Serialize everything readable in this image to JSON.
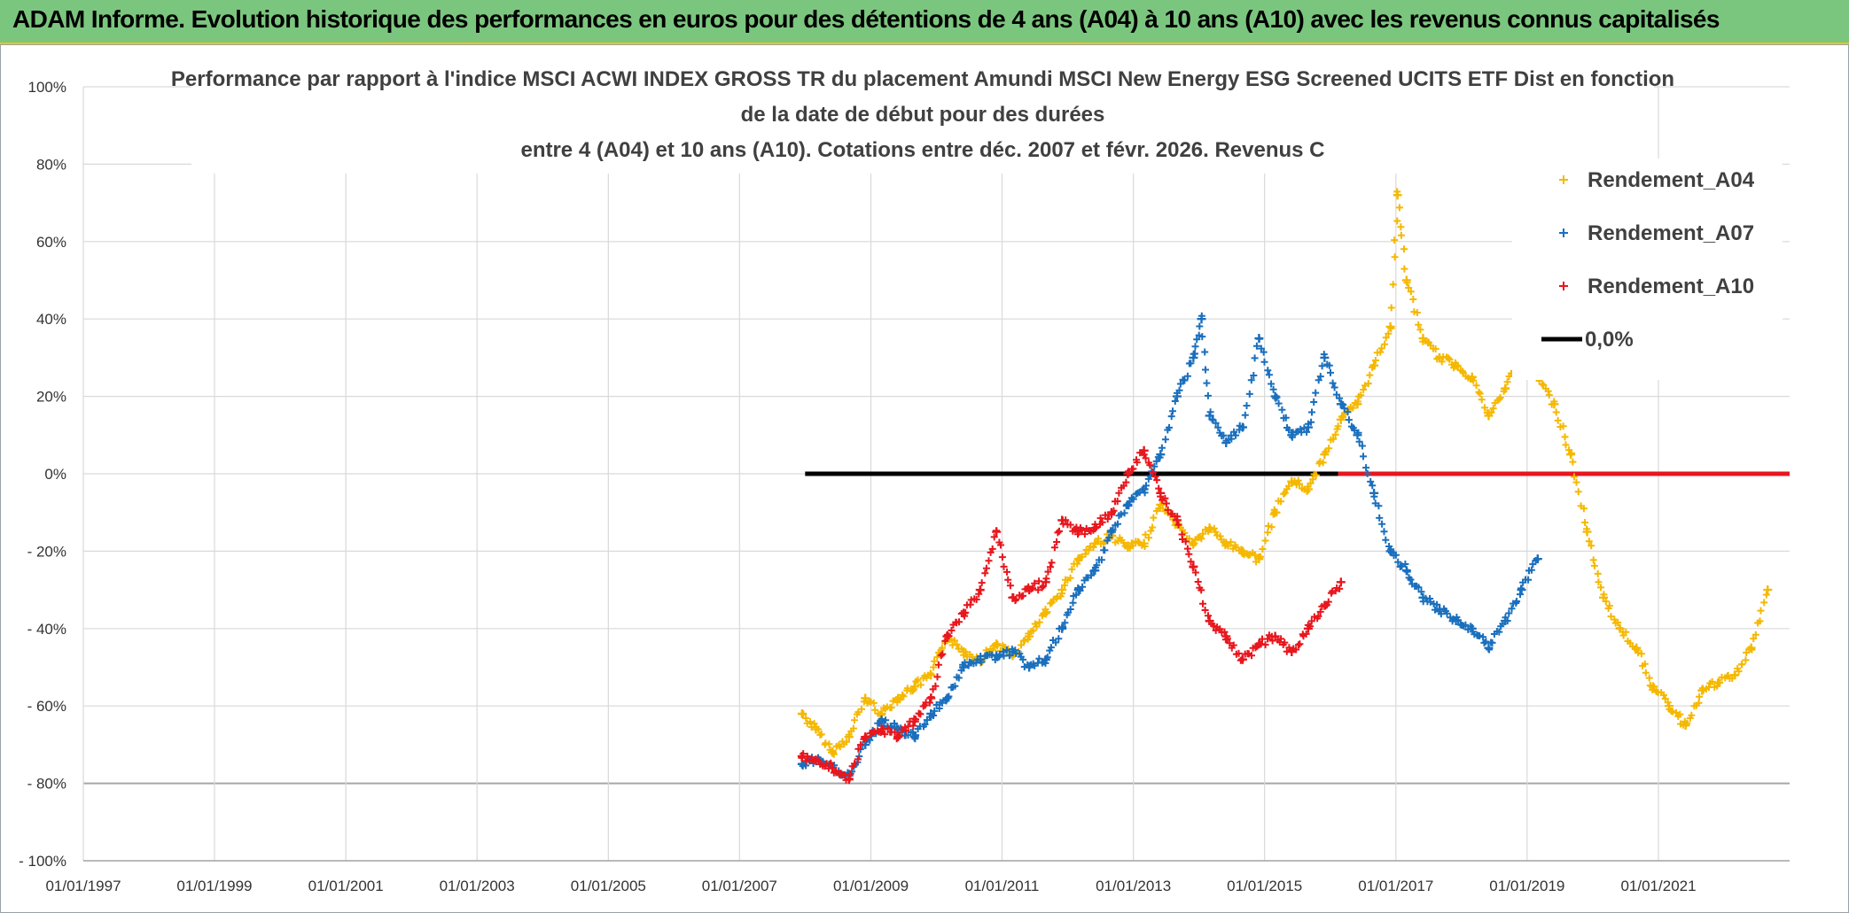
{
  "header": {
    "title": "ADAM Informe. Evolution historique des performances en euros pour des détentions de 4 ans (A04) à 10 ans (A10) avec les revenus connus capitalisés"
  },
  "colors": {
    "banner": "#7bc67e",
    "A04": "#f5b800",
    "A07": "#1a6fbd",
    "A10": "#e8161d",
    "zero": "#000000",
    "grid": "#d9d9d9"
  },
  "chart_data": {
    "type": "scatter",
    "title_lines": [
      "Performance par rapport à l'indice MSCI ACWI INDEX GROSS TR  du placement Amundi MSCI New Energy ESG Screened UCITS ETF Dist en fonction",
      "de la date de début pour des durées",
      "entre 4 (A04) et 10 ans (A10). Cotations entre déc. 2007 et févr. 2026. Revenus C"
    ],
    "x_ticks": [
      "01/01/1997",
      "01/01/1999",
      "01/01/2001",
      "01/01/2003",
      "01/01/2005",
      "01/01/2007",
      "01/01/2009",
      "01/01/2011",
      "01/01/2013",
      "01/01/2015",
      "01/01/2017",
      "01/01/2019",
      "01/01/2021"
    ],
    "xlim": [
      "1997-01-01",
      "2023-01-01"
    ],
    "y_ticks": [
      "100%",
      "80%",
      "60%",
      "40%",
      "20%",
      "0%",
      "- 20%",
      "- 40%",
      "- 60%",
      "- 80%",
      "- 100%"
    ],
    "ylim": [
      -100,
      100
    ],
    "grid": true,
    "legend_position": "top-right",
    "series": [
      {
        "name": "Rendement_A04",
        "marker": "+",
        "x": [
          "2007-12-15",
          "2008-03-01",
          "2008-06-01",
          "2008-09-01",
          "2008-12-01",
          "2009-03-01",
          "2009-06-01",
          "2009-09-01",
          "2009-12-01",
          "2010-03-01",
          "2010-06-01",
          "2010-09-01",
          "2010-12-01",
          "2011-03-01",
          "2011-06-01",
          "2011-09-01",
          "2011-12-01",
          "2012-03-01",
          "2012-06-01",
          "2012-09-01",
          "2012-12-01",
          "2013-03-01",
          "2013-06-01",
          "2013-09-01",
          "2013-12-01",
          "2014-03-01",
          "2014-06-01",
          "2014-09-01",
          "2014-12-01",
          "2015-03-01",
          "2015-06-01",
          "2015-09-01",
          "2015-12-01",
          "2016-03-01",
          "2016-06-01",
          "2016-09-01",
          "2016-12-01",
          "2017-01-10",
          "2017-03-01",
          "2017-06-01",
          "2017-09-01",
          "2017-12-01",
          "2018-03-01",
          "2018-06-01",
          "2018-09-01",
          "2018-12-01",
          "2019-03-01",
          "2019-06-01",
          "2019-09-01",
          "2019-12-01",
          "2020-03-01",
          "2020-06-01",
          "2020-09-01",
          "2020-12-01",
          "2021-03-01",
          "2021-06-01",
          "2021-09-01",
          "2021-12-01",
          "2022-03-01",
          "2022-06-01",
          "2022-09-01"
        ],
        "y": [
          -62,
          -66,
          -72,
          -68,
          -58,
          -62,
          -58,
          -55,
          -52,
          -42,
          -46,
          -48,
          -44,
          -47,
          -42,
          -36,
          -30,
          -22,
          -18,
          -16,
          -19,
          -18,
          -8,
          -13,
          -18,
          -14,
          -18,
          -20,
          -22,
          -10,
          -2,
          -4,
          5,
          14,
          18,
          28,
          38,
          72,
          50,
          35,
          30,
          28,
          25,
          15,
          22,
          32,
          25,
          18,
          5,
          -15,
          -32,
          -40,
          -45,
          -55,
          -60,
          -65,
          -56,
          -54,
          -52,
          -45,
          -30
        ]
      },
      {
        "name": "Rendement_A07",
        "marker": "+",
        "x": [
          "2007-12-15",
          "2008-03-01",
          "2008-06-01",
          "2008-09-01",
          "2008-12-01",
          "2009-03-01",
          "2009-06-01",
          "2009-09-01",
          "2009-12-01",
          "2010-03-01",
          "2010-06-01",
          "2010-09-01",
          "2010-12-01",
          "2011-03-01",
          "2011-06-01",
          "2011-09-01",
          "2011-12-01",
          "2012-03-01",
          "2012-06-01",
          "2012-09-01",
          "2012-12-01",
          "2013-03-01",
          "2013-06-01",
          "2013-09-01",
          "2013-12-01",
          "2014-01-15",
          "2014-03-01",
          "2014-06-01",
          "2014-09-01",
          "2014-12-01",
          "2015-03-01",
          "2015-06-01",
          "2015-09-01",
          "2015-12-01",
          "2016-03-01",
          "2016-06-01",
          "2016-09-01",
          "2016-12-01",
          "2017-03-01",
          "2017-06-01",
          "2017-09-01",
          "2017-12-01",
          "2018-03-01",
          "2018-06-01",
          "2018-09-01",
          "2018-12-01",
          "2019-03-01"
        ],
        "y": [
          -75,
          -74,
          -76,
          -78,
          -70,
          -64,
          -66,
          -68,
          -62,
          -58,
          -50,
          -48,
          -47,
          -46,
          -50,
          -48,
          -40,
          -30,
          -25,
          -15,
          -8,
          -4,
          5,
          20,
          30,
          40,
          15,
          8,
          12,
          35,
          20,
          10,
          12,
          30,
          18,
          10,
          -5,
          -20,
          -25,
          -32,
          -35,
          -38,
          -40,
          -45,
          -38,
          -30,
          -22
        ]
      },
      {
        "name": "Rendement_A10",
        "marker": "+",
        "x": [
          "2007-12-15",
          "2008-03-01",
          "2008-06-01",
          "2008-09-01",
          "2008-12-01",
          "2009-03-01",
          "2009-06-01",
          "2009-09-01",
          "2009-12-01",
          "2010-03-01",
          "2010-06-01",
          "2010-09-01",
          "2010-12-01",
          "2011-03-01",
          "2011-06-01",
          "2011-09-01",
          "2011-12-01",
          "2012-03-01",
          "2012-06-01",
          "2012-09-01",
          "2012-12-01",
          "2013-03-01",
          "2013-06-01",
          "2013-09-01",
          "2013-12-01",
          "2014-03-01",
          "2014-06-01",
          "2014-09-01",
          "2014-12-01",
          "2015-03-01",
          "2015-06-01",
          "2015-09-01",
          "2015-12-01",
          "2016-03-01"
        ],
        "y": [
          -73,
          -74,
          -76,
          -79,
          -68,
          -66,
          -68,
          -64,
          -58,
          -42,
          -36,
          -30,
          -15,
          -32,
          -30,
          -28,
          -12,
          -15,
          -14,
          -10,
          0,
          6,
          -5,
          -12,
          -24,
          -38,
          -42,
          -48,
          -44,
          -42,
          -46,
          -40,
          -34,
          -28
        ]
      },
      {
        "name": "0,0%",
        "marker": "line",
        "segments": [
          {
            "x": [
              "2008-01-01",
              "2016-02-15"
            ],
            "y": [
              0,
              0
            ],
            "color": "#000000"
          },
          {
            "x": [
              "2016-02-15",
              "2023-01-01"
            ],
            "y": [
              0,
              0
            ],
            "color": "#e8161d"
          }
        ]
      }
    ]
  }
}
